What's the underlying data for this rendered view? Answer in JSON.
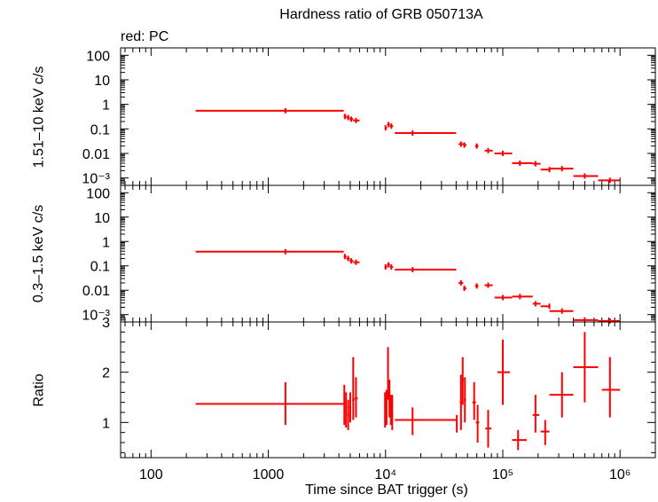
{
  "chart_data": {
    "type": "scatter",
    "title": "Hardness ratio of GRB 050713A",
    "subtitle": "red: PC",
    "xlabel": "Time since BAT trigger (s)",
    "x_scale": "log",
    "xlim": [
      55,
      2000000
    ],
    "x_ticks": [
      "100",
      "1000",
      "10⁴",
      "10⁵",
      "10⁶"
    ],
    "color": "#ff0000",
    "panels": [
      {
        "id": "hard",
        "ylabel": "1.51–10 keV c/s",
        "y_scale": "log",
        "ylim": [
          0.0005,
          200
        ],
        "y_ticks": [
          "100",
          "10",
          "1",
          "0.1",
          "0.01",
          "10⁻³"
        ],
        "points": [
          {
            "x": 1400,
            "xlo": 240,
            "xhi": 4400,
            "y": 0.55
          },
          {
            "x": 4500,
            "xlo": 4400,
            "xhi": 4650,
            "y": 0.32
          },
          {
            "x": 4800,
            "xlo": 4650,
            "xhi": 4950,
            "y": 0.29
          },
          {
            "x": 5100,
            "xlo": 4950,
            "xhi": 5300,
            "y": 0.25
          },
          {
            "x": 5600,
            "xlo": 5300,
            "xhi": 6000,
            "y": 0.22
          },
          {
            "x": 10000,
            "xlo": 9800,
            "xhi": 10300,
            "y": 0.11
          },
          {
            "x": 10600,
            "xlo": 10300,
            "xhi": 10900,
            "y": 0.15
          },
          {
            "x": 11200,
            "xlo": 10900,
            "xhi": 11600,
            "y": 0.13
          },
          {
            "x": 17000,
            "xlo": 12000,
            "xhi": 40000,
            "y": 0.068
          },
          {
            "x": 44000,
            "xlo": 42000,
            "xhi": 46000,
            "y": 0.024
          },
          {
            "x": 47000,
            "xlo": 46000,
            "xhi": 49000,
            "y": 0.022
          },
          {
            "x": 60000,
            "xlo": 58000,
            "xhi": 62000,
            "y": 0.02
          },
          {
            "x": 75000,
            "xlo": 70000,
            "xhi": 82000,
            "y": 0.013
          },
          {
            "x": 100000,
            "xlo": 85000,
            "xhi": 120000,
            "y": 0.01
          },
          {
            "x": 140000,
            "xlo": 120000,
            "xhi": 180000,
            "y": 0.004
          },
          {
            "x": 190000,
            "xlo": 180000,
            "xhi": 210000,
            "y": 0.0038
          },
          {
            "x": 250000,
            "xlo": 210000,
            "xhi": 250000,
            "y": 0.0022
          },
          {
            "x": 320000,
            "xlo": 250000,
            "xhi": 400000,
            "y": 0.0024
          },
          {
            "x": 500000,
            "xlo": 400000,
            "xhi": 650000,
            "y": 0.0012
          },
          {
            "x": 820000,
            "xlo": 650000,
            "xhi": 1000000,
            "y": 0.0008
          }
        ]
      },
      {
        "id": "soft",
        "ylabel": "0.3–1.5 keV c/s",
        "y_scale": "log",
        "ylim": [
          0.0005,
          200
        ],
        "y_ticks": [
          "100",
          "10",
          "1",
          "0.1",
          "0.01",
          "10⁻³"
        ],
        "points": [
          {
            "x": 1400,
            "xlo": 240,
            "xhi": 4400,
            "y": 0.38
          },
          {
            "x": 4500,
            "xlo": 4400,
            "xhi": 4650,
            "y": 0.24
          },
          {
            "x": 4800,
            "xlo": 4650,
            "xhi": 4950,
            "y": 0.2
          },
          {
            "x": 5100,
            "xlo": 4950,
            "xhi": 5300,
            "y": 0.16
          },
          {
            "x": 5600,
            "xlo": 5300,
            "xhi": 6000,
            "y": 0.14
          },
          {
            "x": 10000,
            "xlo": 9800,
            "xhi": 10300,
            "y": 0.09
          },
          {
            "x": 10600,
            "xlo": 10300,
            "xhi": 10900,
            "y": 0.11
          },
          {
            "x": 11200,
            "xlo": 10900,
            "xhi": 11600,
            "y": 0.09
          },
          {
            "x": 17000,
            "xlo": 12000,
            "xhi": 40000,
            "y": 0.07
          },
          {
            "x": 44000,
            "xlo": 42000,
            "xhi": 46000,
            "y": 0.02
          },
          {
            "x": 47000,
            "xlo": 46000,
            "xhi": 49000,
            "y": 0.012
          },
          {
            "x": 60000,
            "xlo": 58000,
            "xhi": 62000,
            "y": 0.015
          },
          {
            "x": 75000,
            "xlo": 70000,
            "xhi": 82000,
            "y": 0.016
          },
          {
            "x": 100000,
            "xlo": 85000,
            "xhi": 120000,
            "y": 0.005
          },
          {
            "x": 140000,
            "xlo": 120000,
            "xhi": 180000,
            "y": 0.0055
          },
          {
            "x": 190000,
            "xlo": 180000,
            "xhi": 210000,
            "y": 0.0028
          },
          {
            "x": 250000,
            "xlo": 210000,
            "xhi": 250000,
            "y": 0.0022
          },
          {
            "x": 320000,
            "xlo": 250000,
            "xhi": 400000,
            "y": 0.0014
          },
          {
            "x": 500000,
            "xlo": 400000,
            "xhi": 650000,
            "y": 0.0006
          },
          {
            "x": 820000,
            "xlo": 650000,
            "xhi": 1000000,
            "y": 0.00055
          }
        ]
      },
      {
        "id": "ratio",
        "ylabel": "Ratio",
        "y_scale": "linear",
        "ylim": [
          0.3,
          3
        ],
        "y_ticks": [
          "3",
          "2",
          "1"
        ],
        "points": [
          {
            "x": 1400,
            "xlo": 240,
            "xhi": 4400,
            "y": 1.37,
            "ylo": 0.95,
            "yhi": 1.8
          },
          {
            "x": 4450,
            "xlo": 4400,
            "xhi": 4520,
            "y": 1.35,
            "ylo": 0.95,
            "yhi": 1.75
          },
          {
            "x": 4600,
            "xlo": 4520,
            "xhi": 4680,
            "y": 1.2,
            "ylo": 0.9,
            "yhi": 1.6
          },
          {
            "x": 4800,
            "xlo": 4700,
            "xhi": 4900,
            "y": 1.15,
            "ylo": 0.85,
            "yhi": 1.45
          },
          {
            "x": 5000,
            "xlo": 4900,
            "xhi": 5100,
            "y": 1.3,
            "ylo": 1.0,
            "yhi": 1.6
          },
          {
            "x": 5300,
            "xlo": 5200,
            "xhi": 5450,
            "y": 1.45,
            "ylo": 1.05,
            "yhi": 2.3
          },
          {
            "x": 5600,
            "xlo": 5450,
            "xhi": 5800,
            "y": 1.48,
            "ylo": 1.1,
            "yhi": 1.9
          },
          {
            "x": 9900,
            "xlo": 9800,
            "xhi": 10000,
            "y": 1.2,
            "ylo": 0.9,
            "yhi": 1.6
          },
          {
            "x": 10200,
            "xlo": 10100,
            "xhi": 10300,
            "y": 1.3,
            "ylo": 0.95,
            "yhi": 1.65
          },
          {
            "x": 10500,
            "xlo": 10400,
            "xhi": 10600,
            "y": 1.95,
            "ylo": 1.45,
            "yhi": 2.5
          },
          {
            "x": 10800,
            "xlo": 10700,
            "xhi": 10900,
            "y": 1.5,
            "ylo": 1.1,
            "yhi": 1.85
          },
          {
            "x": 11100,
            "xlo": 11000,
            "xhi": 11200,
            "y": 1.2,
            "ylo": 0.95,
            "yhi": 1.55
          },
          {
            "x": 11400,
            "xlo": 11300,
            "xhi": 11600,
            "y": 1.15,
            "ylo": 0.85,
            "yhi": 1.55
          },
          {
            "x": 17000,
            "xlo": 12000,
            "xhi": 40000,
            "y": 1.05,
            "ylo": 0.75,
            "yhi": 1.3
          },
          {
            "x": 40500,
            "xlo": 40000,
            "xhi": 41000,
            "y": 1.0,
            "ylo": 0.8,
            "yhi": 1.15
          },
          {
            "x": 44000,
            "xlo": 43000,
            "xhi": 45000,
            "y": 1.4,
            "ylo": 0.85,
            "yhi": 1.95
          },
          {
            "x": 45500,
            "xlo": 45000,
            "xhi": 46500,
            "y": 1.85,
            "ylo": 1.35,
            "yhi": 2.3
          },
          {
            "x": 47500,
            "xlo": 46500,
            "xhi": 48500,
            "y": 1.45,
            "ylo": 1.0,
            "yhi": 1.9
          },
          {
            "x": 57000,
            "xlo": 55000,
            "xhi": 59000,
            "y": 1.4,
            "ylo": 1.05,
            "yhi": 1.8
          },
          {
            "x": 61000,
            "xlo": 59000,
            "xhi": 63000,
            "y": 1.0,
            "ylo": 0.6,
            "yhi": 1.35
          },
          {
            "x": 75000,
            "xlo": 71000,
            "xhi": 80000,
            "y": 0.88,
            "ylo": 0.5,
            "yhi": 1.25
          },
          {
            "x": 100000,
            "xlo": 90000,
            "xhi": 115000,
            "y": 2.0,
            "ylo": 1.35,
            "yhi": 2.65
          },
          {
            "x": 135000,
            "xlo": 120000,
            "xhi": 160000,
            "y": 0.65,
            "ylo": 0.45,
            "yhi": 0.85
          },
          {
            "x": 190000,
            "xlo": 180000,
            "xhi": 205000,
            "y": 1.15,
            "ylo": 0.8,
            "yhi": 1.55
          },
          {
            "x": 230000,
            "xlo": 210000,
            "xhi": 250000,
            "y": 0.82,
            "ylo": 0.55,
            "yhi": 1.05
          },
          {
            "x": 320000,
            "xlo": 250000,
            "xhi": 400000,
            "y": 1.55,
            "ylo": 1.1,
            "yhi": 2.0
          },
          {
            "x": 500000,
            "xlo": 400000,
            "xhi": 650000,
            "y": 2.1,
            "ylo": 1.4,
            "yhi": 2.8
          },
          {
            "x": 820000,
            "xlo": 700000,
            "xhi": 1000000,
            "y": 1.65,
            "ylo": 1.1,
            "yhi": 2.3
          }
        ]
      }
    ]
  }
}
